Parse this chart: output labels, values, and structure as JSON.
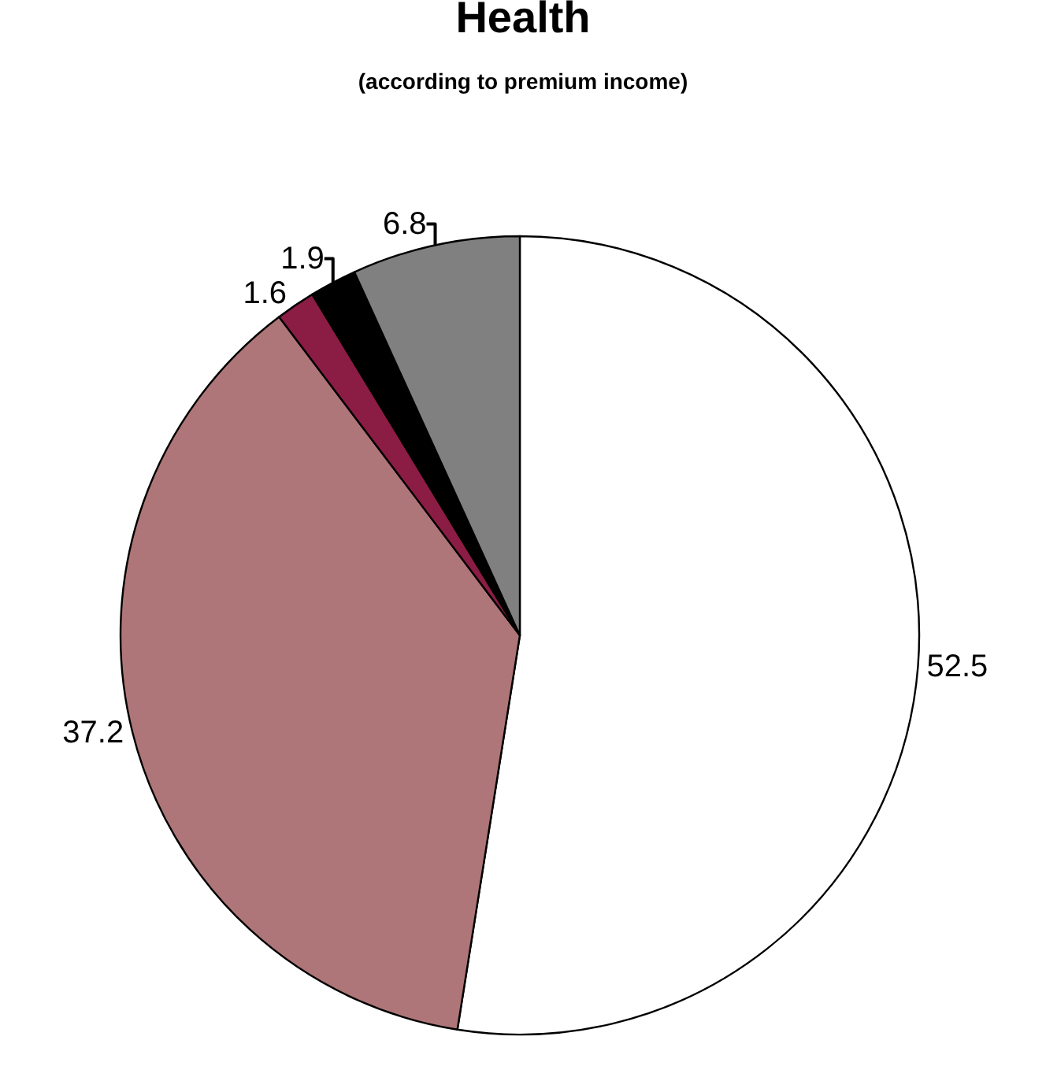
{
  "chart_data": {
    "type": "pie",
    "title": "Health",
    "subtitle": "(according to premium income)",
    "categories": [
      null,
      null,
      null,
      null,
      null
    ],
    "values": [
      52.5,
      37.2,
      1.6,
      1.9,
      6.8
    ],
    "colors": [
      "#ffffff",
      "#ae7678",
      "#8b1c44",
      "#000000",
      "#808080"
    ],
    "data_labels": true,
    "legend": false
  }
}
